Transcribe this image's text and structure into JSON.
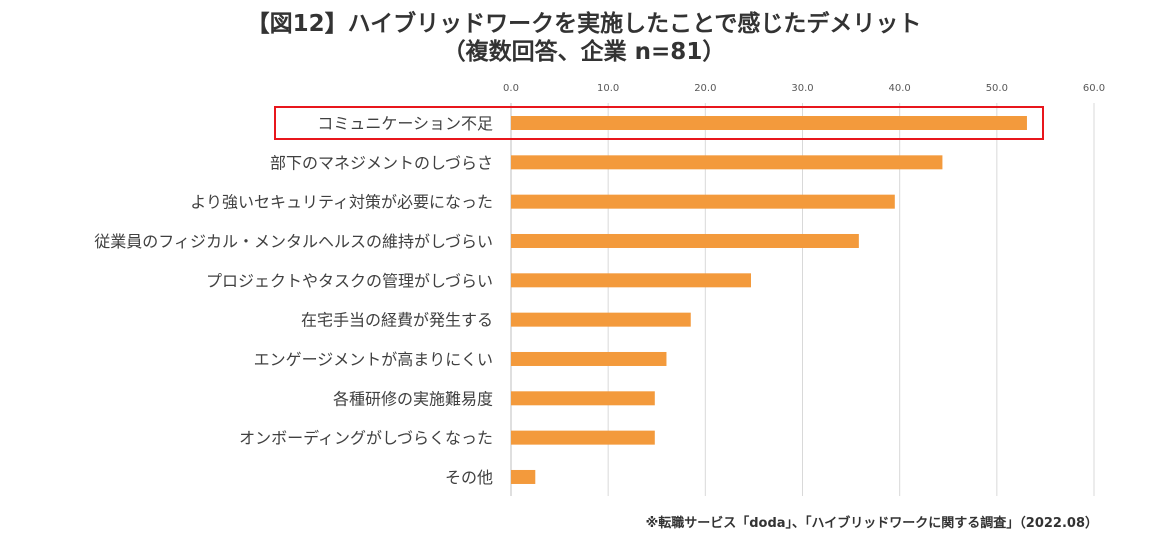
{
  "chart_data": {
    "type": "bar",
    "orientation": "horizontal",
    "title": "【図12】ハイブリッドワークを実施したことで感じたデメリット",
    "subtitle": "（複数回答、企業 n=81）",
    "categories": [
      "コミュニケーション不足",
      "部下のマネジメントのしづらさ",
      "より強いセキュリティ対策が必要になった",
      "従業員のフィジカル・メンタルヘルスの維持がしづらい",
      "プロジェクトやタスクの管理がしづらい",
      "在宅手当の経費が発生する",
      "エンゲージメントが高まりにくい",
      "各種研修の実施難易度",
      "オンボーディングがしづらくなった",
      "その他"
    ],
    "values": [
      53.1,
      44.4,
      39.5,
      35.8,
      24.7,
      18.5,
      16.0,
      14.8,
      14.8,
      2.5
    ],
    "xlim": [
      0,
      60
    ],
    "xticks": [
      "0.0",
      "10.0",
      "20.0",
      "30.0",
      "40.0",
      "50.0",
      "60.0"
    ],
    "grid": true,
    "axis_position": "top",
    "bar_color": "#F39A3C",
    "highlight_color": "#E8161C",
    "highlighted_category": "コミュニケーション不足",
    "source": "※転職サービス「doda」、「ハイブリッドワークに関する調査」（2022.08）"
  }
}
